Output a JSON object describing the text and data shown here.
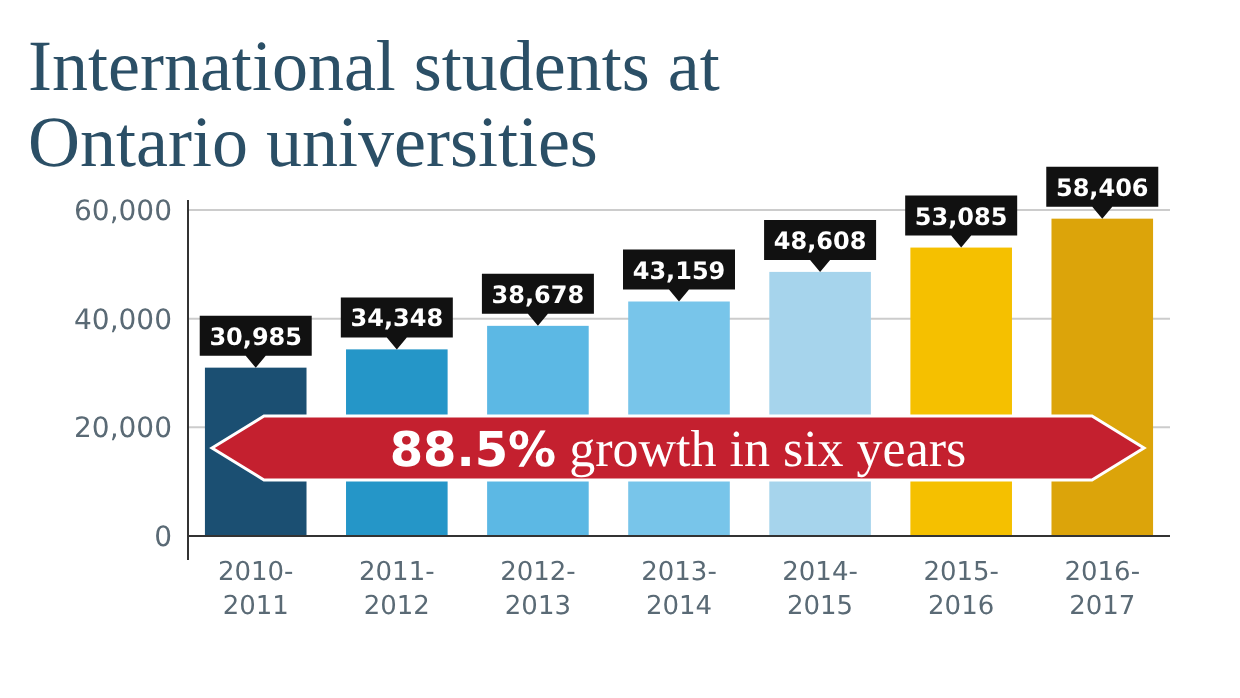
{
  "chart_data": {
    "type": "bar",
    "title": "International students at Ontario universities",
    "categories": [
      "2010-2011",
      "2011-2012",
      "2012-2013",
      "2013-2014",
      "2014-2015",
      "2015-2016",
      "2016-2017"
    ],
    "values": [
      30985,
      34348,
      38678,
      43159,
      48608,
      53085,
      58406
    ],
    "colors": [
      "#1b4f72",
      "#2596c8",
      "#5cb8e4",
      "#78c5ea",
      "#a6d4ec",
      "#f5c000",
      "#dca40a"
    ],
    "ylim": [
      0,
      60000
    ],
    "yticks": [
      0,
      {
        "value": 20000,
        "label": "20,000"
      },
      {
        "value": 40000,
        "label": "40,000"
      },
      {
        "value": 60000,
        "label": "60,000"
      }
    ],
    "grid": "y",
    "value_labels": [
      "30,985",
      "34,348",
      "38,678",
      "43,159",
      "48,608",
      "53,085",
      "58,406"
    ],
    "annotations": [
      "88.5% growth in six years"
    ]
  }
}
